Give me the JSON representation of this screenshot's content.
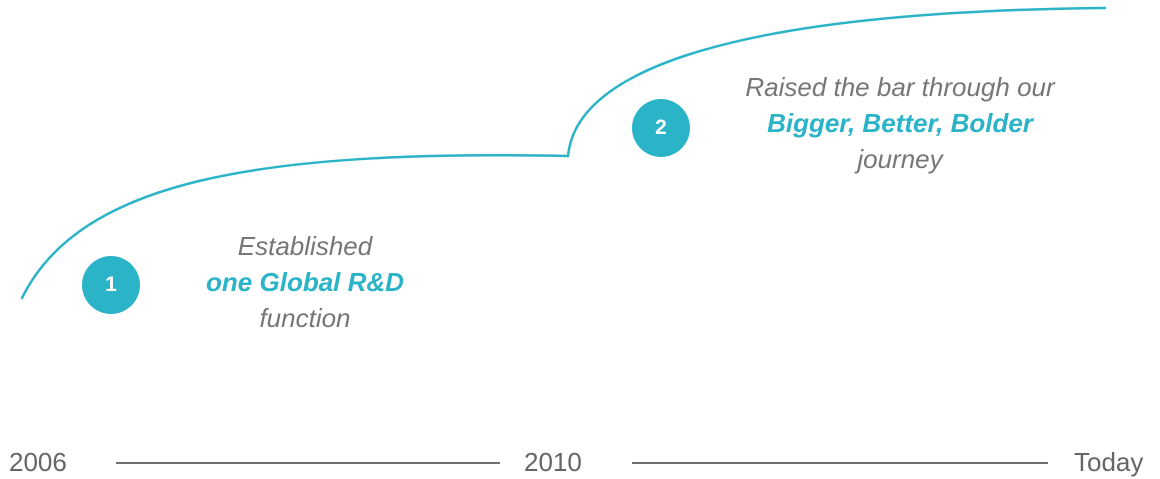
{
  "colors": {
    "accent": "#2bb3c8",
    "text_muted": "#767676",
    "axis": "#6f6f6f"
  },
  "milestones": [
    {
      "number": "1",
      "line1": "Established",
      "highlight": "one Global R&D",
      "line3": "function"
    },
    {
      "number": "2",
      "line1": "Raised the bar through our",
      "highlight": "Bigger, Better, Bolder",
      "line3": "journey"
    }
  ],
  "timeline": {
    "start_label": "2006",
    "mid_label": "2010",
    "end_label": "Today"
  }
}
